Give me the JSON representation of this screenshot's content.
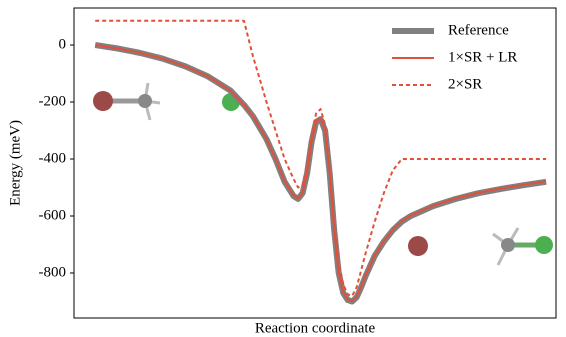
{
  "chart_data": {
    "type": "line",
    "xlabel": "Reaction coordinate",
    "ylabel": "Energy (meV)",
    "x": [
      0,
      5,
      10,
      15,
      20,
      25,
      30,
      33,
      35,
      38,
      40,
      42,
      44,
      45,
      46,
      47,
      48,
      49,
      50,
      51,
      52,
      53,
      54,
      55,
      56,
      57,
      58,
      59,
      60,
      62,
      64,
      66,
      68,
      70,
      75,
      80,
      85,
      90,
      95,
      100
    ],
    "xlim": [
      -4.7,
      102.2
    ],
    "ylim": [
      -958,
      130
    ],
    "yticks": [
      0,
      -200,
      -400,
      -600,
      -800
    ],
    "legend": "upper right",
    "series": [
      {
        "name": "Reference",
        "color": "#808080",
        "width": 6,
        "dash": false,
        "values": [
          0,
          -12,
          -28,
          -48,
          -75,
          -110,
          -160,
          -210,
          -250,
          -330,
          -400,
          -480,
          -530,
          -540,
          -520,
          -450,
          -340,
          -270,
          -260,
          -300,
          -450,
          -650,
          -800,
          -870,
          -895,
          -900,
          -885,
          -850,
          -810,
          -740,
          -690,
          -650,
          -620,
          -600,
          -565,
          -540,
          -520,
          -505,
          -492,
          -480
        ]
      },
      {
        "name": "1×SR + LR",
        "color": "#e0503a",
        "width": 2,
        "dash": false,
        "values": [
          0,
          -12,
          -28,
          -48,
          -75,
          -110,
          -160,
          -210,
          -250,
          -330,
          -400,
          -478,
          -528,
          -538,
          -518,
          -448,
          -338,
          -268,
          -258,
          -298,
          -448,
          -648,
          -798,
          -868,
          -893,
          -898,
          -883,
          -848,
          -808,
          -738,
          -688,
          -648,
          -618,
          -598,
          -563,
          -538,
          -518,
          -503,
          -490,
          -478
        ]
      },
      {
        "name": "2×SR",
        "color": "#e0503a",
        "width": 2,
        "dash": true,
        "values": [
          85,
          85,
          85,
          85,
          85,
          85,
          85,
          85,
          -40,
          -200,
          -300,
          -400,
          -470,
          -500,
          -490,
          -420,
          -320,
          -240,
          -225,
          -280,
          -430,
          -620,
          -760,
          -840,
          -875,
          -880,
          -850,
          -790,
          -730,
          -620,
          -520,
          -440,
          -400,
          -400,
          -400,
          -400,
          -400,
          -400,
          -400,
          -400
        ]
      }
    ]
  }
}
